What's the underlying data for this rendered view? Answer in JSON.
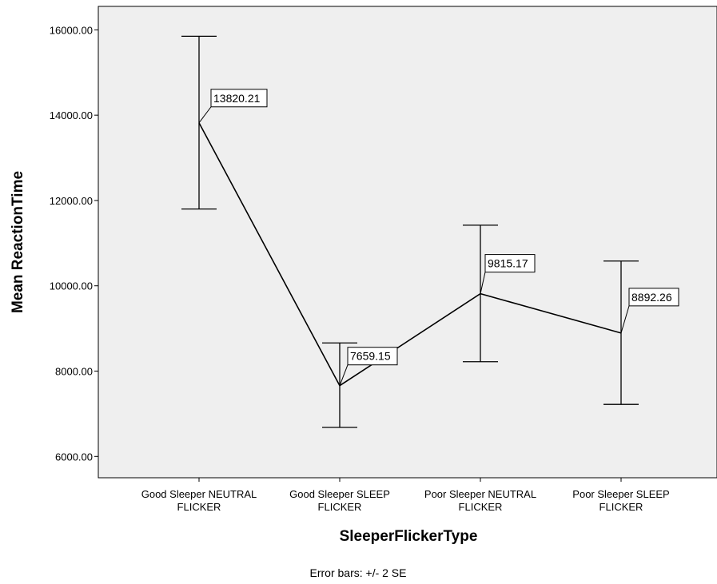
{
  "chart_data": {
    "type": "line",
    "categories": [
      [
        "Good Sleeper NEUTRAL",
        "FLICKER"
      ],
      [
        "Good Sleeper SLEEP",
        "FLICKER"
      ],
      [
        "Poor Sleeper NEUTRAL",
        "FLICKER"
      ],
      [
        "Poor Sleeper SLEEP",
        "FLICKER"
      ]
    ],
    "values": [
      13820.21,
      7659.15,
      9815.17,
      8892.26
    ],
    "value_labels": [
      "13820.21",
      "7659.15",
      "9815.17",
      "8892.26"
    ],
    "error_bars": {
      "upper": [
        15850,
        8660,
        11420,
        10580
      ],
      "lower": [
        11800,
        6680,
        8220,
        7220
      ]
    },
    "xlabel": "SleeperFlickerType",
    "ylabel": "Mean ReactionTime",
    "ylim": [
      5500,
      16550
    ],
    "yticks": [
      6000,
      8000,
      10000,
      12000,
      14000,
      16000
    ],
    "ytick_labels": [
      "6000.00",
      "8000.00",
      "10000.00",
      "12000.00",
      "14000.00",
      "16000.00"
    ],
    "footnote": "Error bars: +/- 2 SE",
    "grid": false,
    "colors": {
      "plot_background": "#efefef",
      "line": "#000000",
      "label_box": "#ffffff"
    }
  }
}
